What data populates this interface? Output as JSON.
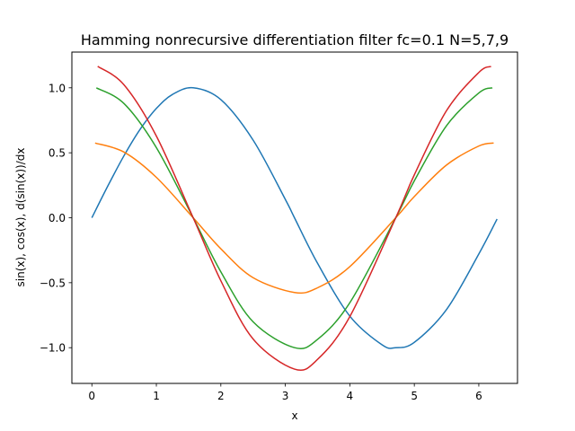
{
  "chart_data": {
    "type": "line",
    "title": "Hamming nonrecursive differentiation filter fc=0.1 N=5,7,9",
    "xlabel": "x",
    "ylabel": "sin(x), cos(x),  d(sin(x))/dx",
    "xlim": [
      -0.31,
      6.6
    ],
    "ylim": [
      -1.275,
      1.275
    ],
    "xticks": [
      0,
      1,
      2,
      3,
      4,
      5,
      6
    ],
    "yticks": [
      -1.0,
      -0.5,
      0.0,
      0.5,
      1.0
    ],
    "xtick_labels": [
      "0",
      "1",
      "2",
      "3",
      "4",
      "5",
      "6"
    ],
    "ytick_labels": [
      "−1.0",
      "−0.5",
      "0.0",
      "0.5",
      "1.0"
    ],
    "grid": false,
    "series": [
      {
        "color": "#1f77b4",
        "x": [
          0,
          0.25,
          0.5,
          0.75,
          1.0,
          1.25,
          1.5708,
          2.0,
          2.5,
          3.0,
          3.1416,
          3.5,
          4.0,
          4.5,
          4.7124,
          5.0,
          5.5,
          6.0,
          6.2832
        ],
        "y": [
          0,
          0.247,
          0.479,
          0.682,
          0.841,
          0.949,
          1.0,
          0.909,
          0.598,
          0.141,
          0.0,
          -0.351,
          -0.757,
          -0.978,
          -1.0,
          -0.959,
          -0.706,
          -0.279,
          -0.01
        ]
      },
      {
        "color": "#ff7f0e",
        "x": [
          0.05,
          0.5,
          1.0,
          1.5708,
          2.0,
          2.5,
          3.1416,
          3.5,
          4.0,
          4.7124,
          5.0,
          5.5,
          6.0,
          6.23
        ],
        "y": [
          0.575,
          0.505,
          0.311,
          0.0,
          -0.239,
          -0.461,
          -0.575,
          -0.539,
          -0.376,
          0.0,
          0.163,
          0.406,
          0.552,
          0.575
        ]
      },
      {
        "color": "#2ca02c",
        "x": [
          0.07,
          0.5,
          1.0,
          1.5708,
          2.0,
          2.5,
          3.1416,
          3.5,
          4.0,
          4.7124,
          5.0,
          5.5,
          6.0,
          6.21
        ],
        "y": [
          1.0,
          0.878,
          0.54,
          0.0,
          -0.416,
          -0.801,
          -1.0,
          -0.936,
          -0.654,
          0.0,
          0.284,
          0.709,
          0.96,
          1.0
        ]
      },
      {
        "color": "#d62728",
        "x": [
          0.09,
          0.5,
          1.0,
          1.5708,
          2.0,
          2.5,
          3.1416,
          3.5,
          4.0,
          4.7124,
          5.0,
          5.5,
          6.0,
          6.19
        ],
        "y": [
          1.165,
          1.022,
          0.629,
          0.0,
          -0.485,
          -0.933,
          -1.165,
          -1.09,
          -0.761,
          0.0,
          0.33,
          0.825,
          1.118,
          1.165
        ]
      }
    ]
  }
}
